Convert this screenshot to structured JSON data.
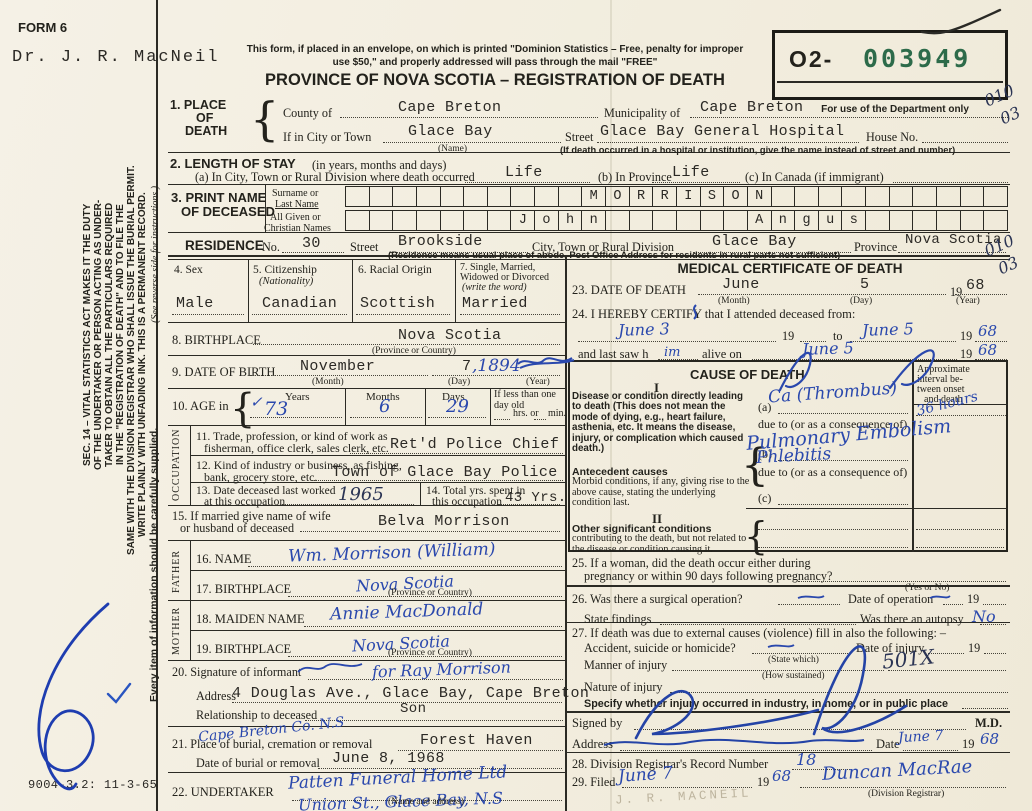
{
  "header": {
    "form_no": "FORM 6",
    "doctor": "Dr. J. R. MacNeil",
    "notice1": "This form, if placed in an envelope, on which is printed \"Dominion Statistics – Free, penalty for improper",
    "notice2": "use $50,\" and properly addressed will pass through the mail \"FREE\"",
    "title": "PROVINCE OF NOVA SCOTIA – REGISTRATION OF DEATH",
    "serial_prefix": "O2-",
    "serial_number": "003949",
    "dept_note": "For use of the Department only",
    "margin_code_a": "010",
    "margin_code_b": "03"
  },
  "sidebar": {
    "sec14": [
      "SEC. 14 – VITAL STATISTICS ACT MAKES IT THE DUTY",
      "OF THE UNDERTAKER OR PERSON ACTING AS UNDER-",
      "TAKER TO OBTAIN ALL THE PARTICULARS REQUIRED",
      "IN THE \"REGISTRATION OF DEATH\" AND TO FILE THE",
      "SAME WITH THE DIVISION REGISTRAR WHO SHALL ISSUE THE BURIAL PERMIT.",
      "WRITE PLAINLY WITH UNFADING INK. THIS IS A PERMANENT RECORD."
    ],
    "see_reverse": "(See reverse side for instructions.)",
    "every_item": "Every item of information should be carefully supplied.",
    "print_code": "9004-3.2: 11-3-65"
  },
  "misc": {
    "y19": "19",
    "brace": "{"
  },
  "s1": {
    "label1": "1. PLACE",
    "label2": "OF",
    "label3": "DEATH",
    "county_label": "County of",
    "county": "Cape Breton",
    "municipality_label": "Municipality of",
    "municipality": "Cape Breton",
    "city_label": "If in City or Town",
    "city": "Glace Bay",
    "name_cap": "(Name)",
    "street_label": "Street",
    "street": "Glace Bay General Hospital",
    "house_label": "House No.",
    "hospital_cap": "(If death occurred in a hospital or institution, give the name instead of street and number)"
  },
  "s2": {
    "title": "2. LENGTH OF STAY",
    "title_sub": "(in years, months and days)",
    "a_label": "(a) In City, Town or Rural Division where death occurred",
    "a": "Life",
    "b_label": "(b) In Province",
    "b": "Life",
    "c_label": "(c) In Canada (if immigrant)"
  },
  "s3": {
    "title1": "3. PRINT NAME",
    "title2": "OF DECEASED",
    "surname_label1": "Surname or",
    "surname_label2": "Last Name",
    "given_label1": "All Given or",
    "given_label2": "Christian Names",
    "cells_surname": [
      "",
      "",
      "",
      "",
      "",
      "",
      "",
      "",
      "",
      "",
      "M",
      "O",
      "R",
      "R",
      "I",
      "S",
      "O",
      "N",
      "",
      "",
      "",
      "",
      "",
      "",
      "",
      "",
      "",
      ""
    ],
    "cells_given": [
      "",
      "",
      "",
      "",
      "",
      "",
      "",
      "J",
      "o",
      "h",
      "n",
      "",
      "",
      "",
      "",
      "",
      "",
      "A",
      "n",
      "g",
      "u",
      "s",
      "",
      "",
      "",
      "",
      "",
      ""
    ]
  },
  "res": {
    "label": "RESIDENCE",
    "no_label": "No.",
    "no": "30",
    "street_label": "Street",
    "street": "Brookside",
    "city_label": "City, Town or Rural Division",
    "city": "Glace Bay",
    "prov_label": "Province",
    "prov": "Nova Scotia",
    "cap": "(Residence means usual place of abode. Post Office Address for residents in rural parts not sufficient)",
    "code_a": "010",
    "code_b": "03"
  },
  "boxes": {
    "sex_label": "4. Sex",
    "sex": "Male",
    "cit_label": "5. Citizenship",
    "cit_sub": "(Nationality)",
    "cit": "Canadian",
    "race_label": "6. Racial Origin",
    "race": "Scottish",
    "mar_label1": "7. Single, Married,",
    "mar_label2": "Widowed or Divorced",
    "mar_label3": "(write the word)",
    "mar": "Married"
  },
  "s8": {
    "label": "8. BIRTHPLACE",
    "value": "Nova Scotia",
    "cap": "(Province or Country)"
  },
  "s9": {
    "label": "9. DATE OF BIRTH",
    "month": "November",
    "month_cap": "(Month)",
    "day": "7",
    "day_hw": ",1894",
    "day_cap": "(Day)",
    "year_cap": "(Year)"
  },
  "s10": {
    "label": "10. AGE in",
    "years_label": "Years",
    "check": "✓",
    "years": "73",
    "months_label": "Months",
    "months": "6",
    "days_label": "Days",
    "days": "29",
    "ifless": "If less than one day old",
    "hrs_label": "hrs. or",
    "min_label": "min."
  },
  "occ": {
    "side": "OCCUPATION",
    "l11a": "11. Trade, profession, or kind of work as",
    "l11b": "fisherman, office clerk, sales clerk, etc.",
    "v11": "Ret'd Police Chief",
    "l12a": "12. Kind of industry or business, as fishing,",
    "l12b": "bank, grocery store, etc.",
    "v12": "Town of Glace Bay Police",
    "l13a": "13. Date deceased last worked",
    "l13b": "at this occupation",
    "v13": "1965",
    "l14a": "14. Total yrs. spent in",
    "l14b": "this occupation",
    "v14": "43 Yrs."
  },
  "s15": {
    "la": "15. If married give name of wife",
    "lb": "or husband of deceased",
    "v": "Belva Morrison"
  },
  "father": {
    "side": "FATHER",
    "name_label": "16. NAME",
    "name": "Wm. Morrison (William)",
    "bp_label": "17. BIRTHPLACE",
    "bp": "Nova Scotia",
    "cap": "(Province or Country)"
  },
  "mother": {
    "side": "MOTHER",
    "maiden_label": "18. MAIDEN NAME",
    "maiden": "Annie MacDonald",
    "bp_label": "19. BIRTHPLACE",
    "bp": "Nova Scotia",
    "cap": "(Province or Country)"
  },
  "s20": {
    "sig_label": "20. Signature of informant",
    "sig": "for Ray Morrison",
    "addr_label": "Address",
    "addr": "4 Douglas Ave., Glace Bay, Cape Breton",
    "rel_label": "Relationship to deceased",
    "rel": "Son"
  },
  "s21": {
    "label": "21. Place of burial, cremation or removal",
    "hw": "Cape Breton Co. N.S",
    "v": "Forest Haven",
    "date_label": "Date of burial or removal",
    "date": "June 8, 1968"
  },
  "s22": {
    "label": "22. UNDERTAKER",
    "hw1": "Patten Funeral Home Ltd",
    "hw2": "Union St., Glace Bay, N.S",
    "cap": "(Name and address)"
  },
  "med": {
    "title": "MEDICAL CERTIFICATE OF DEATH",
    "s23_label": "23. DATE OF DEATH",
    "month": "June",
    "month_cap": "(Month)",
    "day": "5",
    "day_cap": "(Day)",
    "year": "68",
    "year_cap": "(Year)",
    "s24_label": "24. I HEREBY CERTIFY that I attended deceased from:",
    "from_hw": "June 3",
    "to_label": "to",
    "to_hw": "June 5",
    "saw_label1": "and last saw h",
    "him": "im",
    "saw_label2": "alive on",
    "saw_hw": "June 5",
    "yr_hw1": "68",
    "yr_hw2": "68"
  },
  "cause": {
    "title": "CAUSE OF DEATH",
    "interval": [
      "Approximate",
      "interval be-",
      "tween onset",
      "and death"
    ],
    "i": "I",
    "ii": "II",
    "desc1": "Disease or condition directly leading to death (This does not mean the mode of dying, e.g., heart failure, asthenia, etc. It means the disease, injury, or complication which caused death.)",
    "desc2_title": "Antecedent causes",
    "desc2": "Morbid conditions, if any, giving rise to the above cause, stating the underlying condition last.",
    "desc3_title": "Other significant conditions",
    "desc3": "contributing to the death, but not related to the disease or condition causing it.",
    "a_label": "(a)",
    "due1": "due to (or as a consequence of)",
    "b_label": "(b)",
    "due2": "due to (or as a consequence of)",
    "c_label": "(c)",
    "a_hw": "Ca (Thrombus)",
    "due_hw": "Pulmonary Embolism",
    "b_hw": "Phlebitis",
    "interval_hw": "36 hours"
  },
  "s25": {
    "l1": "25. If a woman, did the death occur either during",
    "l2": "pregnancy or within 90 days following pregnancy?",
    "cap": "(Yes or No)"
  },
  "s26": {
    "l1": "26. Was there a surgical operation?",
    "op_label": "Date of operation",
    "l2": "State findings",
    "autopsy_label": "Was there an autopsy",
    "autopsy_hw": "No"
  },
  "s27": {
    "l1": "27. If death was due to external causes (violence) fill in also the following: –",
    "l2": "Accident, suicide or homicide?",
    "state_cap": "(State which)",
    "inj_label": "Date of injury",
    "l3": "Manner of injury",
    "how_cap": "(How sustained)",
    "hw": "501X",
    "l4": "Nature of injury",
    "l5": "Specify whether injury occurred in industry, in home, or in public place"
  },
  "sign": {
    "signed": "Signed by",
    "md": "M.D.",
    "addr": "Address",
    "date_label": "Date",
    "date_hw": "June 7",
    "year_hw": "68"
  },
  "s28": {
    "label": "28. Division Registrar's Record Number",
    "hw": "18"
  },
  "s29": {
    "label": "29. Filed",
    "date_hw": "June 7",
    "year_hw": "68",
    "registrar_hw": "Duncan MacRae",
    "cap": "(Division Registrar)",
    "stamp": "J. R. MACNEIL"
  }
}
